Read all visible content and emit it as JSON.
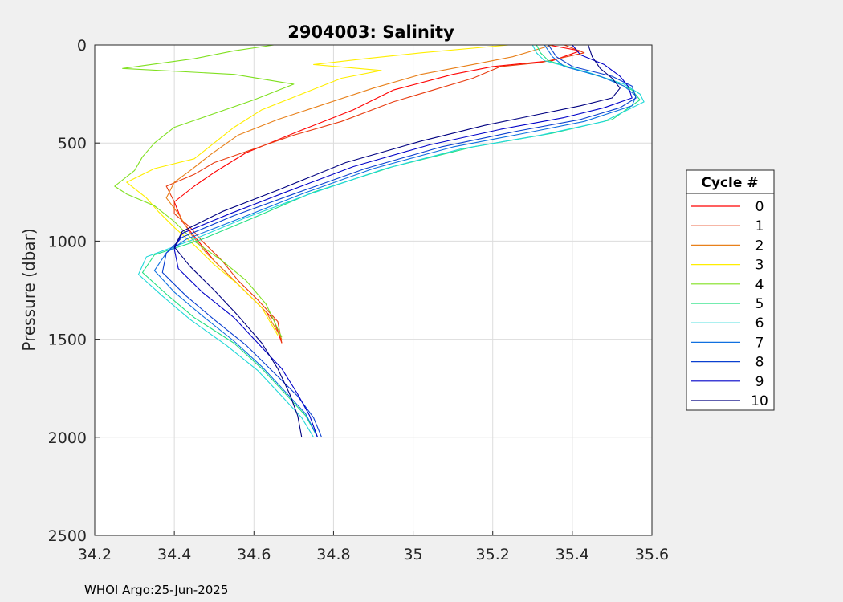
{
  "footer": "WHOI Argo:25-Jun-2025",
  "chart_data": {
    "type": "line",
    "title": "2904003:  Salinity",
    "xlabel": "",
    "ylabel": "Pressure (dbar)",
    "xlim": [
      34.2,
      35.6
    ],
    "ylim": [
      0,
      2500
    ],
    "y_reversed": true,
    "grid": true,
    "xticks": [
      "34.2",
      "34.4",
      "34.6",
      "34.8",
      "35",
      "35.2",
      "35.4",
      "35.6"
    ],
    "yticks": [
      "0",
      "500",
      "1000",
      "1500",
      "2000",
      "2500"
    ],
    "legend": {
      "title": "Cycle #",
      "placement": "right"
    },
    "series": [
      {
        "name": "0",
        "color": "#ff0000",
        "points": [
          [
            35.34,
            0
          ],
          [
            35.42,
            30
          ],
          [
            35.35,
            80
          ],
          [
            35.2,
            110
          ],
          [
            35.1,
            150
          ],
          [
            34.95,
            230
          ],
          [
            34.85,
            330
          ],
          [
            34.7,
            450
          ],
          [
            34.58,
            550
          ],
          [
            34.5,
            650
          ],
          [
            34.45,
            720
          ],
          [
            34.4,
            800
          ],
          [
            34.42,
            900
          ],
          [
            34.46,
            1000
          ],
          [
            34.5,
            1100
          ],
          [
            34.55,
            1200
          ],
          [
            34.6,
            1300
          ],
          [
            34.65,
            1400
          ],
          [
            34.67,
            1520
          ]
        ]
      },
      {
        "name": "1",
        "color": "#e83c10",
        "points": [
          [
            35.38,
            0
          ],
          [
            35.43,
            40
          ],
          [
            35.32,
            90
          ],
          [
            35.22,
            110
          ],
          [
            35.15,
            170
          ],
          [
            35.05,
            230
          ],
          [
            34.95,
            290
          ],
          [
            34.82,
            390
          ],
          [
            34.7,
            460
          ],
          [
            34.6,
            530
          ],
          [
            34.5,
            600
          ],
          [
            34.45,
            660
          ],
          [
            34.38,
            720
          ],
          [
            34.4,
            800
          ],
          [
            34.4,
            860
          ],
          [
            34.44,
            930
          ],
          [
            34.47,
            1000
          ],
          [
            34.52,
            1100
          ],
          [
            34.56,
            1200
          ],
          [
            34.61,
            1300
          ],
          [
            34.66,
            1410
          ],
          [
            34.67,
            1520
          ]
        ]
      },
      {
        "name": "2",
        "color": "#e8801a",
        "points": [
          [
            35.35,
            0
          ],
          [
            35.25,
            60
          ],
          [
            35.15,
            100
          ],
          [
            35.02,
            150
          ],
          [
            34.9,
            220
          ],
          [
            34.78,
            300
          ],
          [
            34.66,
            380
          ],
          [
            34.56,
            460
          ],
          [
            34.49,
            560
          ],
          [
            34.44,
            640
          ],
          [
            34.4,
            700
          ],
          [
            34.38,
            780
          ],
          [
            34.41,
            860
          ],
          [
            34.44,
            960
          ],
          [
            34.48,
            1060
          ],
          [
            34.53,
            1160
          ],
          [
            34.58,
            1260
          ],
          [
            34.63,
            1360
          ],
          [
            34.67,
            1500
          ]
        ]
      },
      {
        "name": "3",
        "color": "#ffee00",
        "points": [
          [
            35.24,
            0
          ],
          [
            35.02,
            40
          ],
          [
            34.88,
            70
          ],
          [
            34.75,
            100
          ],
          [
            34.92,
            130
          ],
          [
            34.82,
            170
          ],
          [
            34.72,
            250
          ],
          [
            34.62,
            330
          ],
          [
            34.55,
            420
          ],
          [
            34.5,
            500
          ],
          [
            34.45,
            580
          ],
          [
            34.35,
            630
          ],
          [
            34.28,
            700
          ],
          [
            34.33,
            780
          ],
          [
            34.36,
            850
          ],
          [
            34.4,
            930
          ],
          [
            34.45,
            1020
          ],
          [
            34.5,
            1120
          ],
          [
            34.56,
            1220
          ],
          [
            34.62,
            1340
          ],
          [
            34.66,
            1480
          ]
        ]
      },
      {
        "name": "4",
        "color": "#80e020",
        "points": [
          [
            34.65,
            0
          ],
          [
            34.55,
            30
          ],
          [
            34.45,
            70
          ],
          [
            34.27,
            120
          ],
          [
            34.55,
            150
          ],
          [
            34.7,
            200
          ],
          [
            34.6,
            280
          ],
          [
            34.5,
            350
          ],
          [
            34.4,
            420
          ],
          [
            34.35,
            500
          ],
          [
            34.32,
            570
          ],
          [
            34.3,
            640
          ],
          [
            34.25,
            720
          ],
          [
            34.28,
            760
          ],
          [
            34.35,
            820
          ],
          [
            34.4,
            900
          ],
          [
            34.45,
            1000
          ],
          [
            34.52,
            1100
          ],
          [
            34.58,
            1200
          ],
          [
            34.63,
            1320
          ],
          [
            34.67,
            1490
          ]
        ]
      },
      {
        "name": "5",
        "color": "#20e080",
        "points": [
          [
            35.31,
            0
          ],
          [
            35.32,
            40
          ],
          [
            35.34,
            80
          ],
          [
            35.42,
            130
          ],
          [
            35.5,
            180
          ],
          [
            35.55,
            230
          ],
          [
            35.57,
            280
          ],
          [
            35.5,
            380
          ],
          [
            35.35,
            450
          ],
          [
            35.15,
            520
          ],
          [
            34.95,
            620
          ],
          [
            34.75,
            750
          ],
          [
            34.6,
            880
          ],
          [
            34.47,
            990
          ],
          [
            34.35,
            1070
          ],
          [
            34.32,
            1160
          ],
          [
            34.38,
            1270
          ],
          [
            34.45,
            1390
          ],
          [
            34.55,
            1520
          ],
          [
            34.62,
            1650
          ],
          [
            34.68,
            1780
          ],
          [
            34.73,
            1890
          ],
          [
            34.76,
            2000
          ]
        ]
      },
      {
        "name": "6",
        "color": "#20d8d8",
        "points": [
          [
            35.3,
            0
          ],
          [
            35.31,
            40
          ],
          [
            35.33,
            80
          ],
          [
            35.44,
            140
          ],
          [
            35.53,
            200
          ],
          [
            35.57,
            250
          ],
          [
            35.58,
            290
          ],
          [
            35.48,
            390
          ],
          [
            35.32,
            460
          ],
          [
            35.12,
            530
          ],
          [
            34.93,
            630
          ],
          [
            34.74,
            760
          ],
          [
            34.58,
            880
          ],
          [
            34.45,
            990
          ],
          [
            34.33,
            1080
          ],
          [
            34.31,
            1170
          ],
          [
            34.37,
            1280
          ],
          [
            34.44,
            1400
          ],
          [
            34.53,
            1530
          ],
          [
            34.61,
            1660
          ],
          [
            34.67,
            1790
          ],
          [
            34.72,
            1900
          ],
          [
            34.75,
            2000
          ]
        ]
      },
      {
        "name": "7",
        "color": "#1070e0",
        "points": [
          [
            35.33,
            0
          ],
          [
            35.35,
            60
          ],
          [
            35.38,
            110
          ],
          [
            35.47,
            160
          ],
          [
            35.53,
            210
          ],
          [
            35.56,
            260
          ],
          [
            35.55,
            310
          ],
          [
            35.43,
            390
          ],
          [
            35.28,
            450
          ],
          [
            35.1,
            520
          ],
          [
            34.9,
            630
          ],
          [
            34.72,
            760
          ],
          [
            34.57,
            880
          ],
          [
            34.43,
            990
          ],
          [
            34.38,
            1060
          ],
          [
            34.35,
            1150
          ],
          [
            34.4,
            1260
          ],
          [
            34.47,
            1380
          ],
          [
            34.55,
            1510
          ],
          [
            34.62,
            1640
          ],
          [
            34.68,
            1770
          ],
          [
            34.73,
            1880
          ],
          [
            34.76,
            2000
          ]
        ]
      },
      {
        "name": "8",
        "color": "#0a40d0",
        "points": [
          [
            35.34,
            0
          ],
          [
            35.36,
            60
          ],
          [
            35.4,
            110
          ],
          [
            35.5,
            160
          ],
          [
            35.55,
            210
          ],
          [
            35.56,
            270
          ],
          [
            35.52,
            320
          ],
          [
            35.42,
            380
          ],
          [
            35.26,
            440
          ],
          [
            35.07,
            520
          ],
          [
            34.88,
            630
          ],
          [
            34.7,
            760
          ],
          [
            34.55,
            870
          ],
          [
            34.42,
            980
          ],
          [
            34.38,
            1060
          ],
          [
            34.37,
            1160
          ],
          [
            34.43,
            1280
          ],
          [
            34.5,
            1400
          ],
          [
            34.58,
            1530
          ],
          [
            34.65,
            1670
          ],
          [
            34.71,
            1790
          ],
          [
            34.75,
            1900
          ],
          [
            34.77,
            2000
          ]
        ]
      },
      {
        "name": "9",
        "color": "#0000c8",
        "points": [
          [
            35.4,
            0
          ],
          [
            35.42,
            50
          ],
          [
            35.48,
            100
          ],
          [
            35.52,
            160
          ],
          [
            35.54,
            210
          ],
          [
            35.55,
            270
          ],
          [
            35.48,
            320
          ],
          [
            35.38,
            370
          ],
          [
            35.22,
            430
          ],
          [
            35.04,
            510
          ],
          [
            34.85,
            620
          ],
          [
            34.68,
            750
          ],
          [
            34.54,
            860
          ],
          [
            34.42,
            960
          ],
          [
            34.4,
            1040
          ],
          [
            34.41,
            1140
          ],
          [
            34.47,
            1260
          ],
          [
            34.55,
            1390
          ],
          [
            34.61,
            1520
          ],
          [
            34.67,
            1650
          ],
          [
            34.71,
            1780
          ],
          [
            34.74,
            1890
          ],
          [
            34.76,
            2000
          ]
        ]
      },
      {
        "name": "10",
        "color": "#000080",
        "points": [
          [
            35.44,
            0
          ],
          [
            35.45,
            60
          ],
          [
            35.47,
            120
          ],
          [
            35.5,
            170
          ],
          [
            35.52,
            220
          ],
          [
            35.5,
            270
          ],
          [
            35.42,
            310
          ],
          [
            35.3,
            360
          ],
          [
            35.18,
            410
          ],
          [
            35.02,
            490
          ],
          [
            34.83,
            600
          ],
          [
            34.66,
            740
          ],
          [
            34.52,
            850
          ],
          [
            34.42,
            950
          ],
          [
            34.4,
            1030
          ],
          [
            34.44,
            1130
          ],
          [
            34.5,
            1250
          ],
          [
            34.56,
            1380
          ],
          [
            34.62,
            1520
          ],
          [
            34.66,
            1650
          ],
          [
            34.69,
            1780
          ],
          [
            34.71,
            1890
          ],
          [
            34.72,
            2000
          ]
        ]
      }
    ]
  }
}
